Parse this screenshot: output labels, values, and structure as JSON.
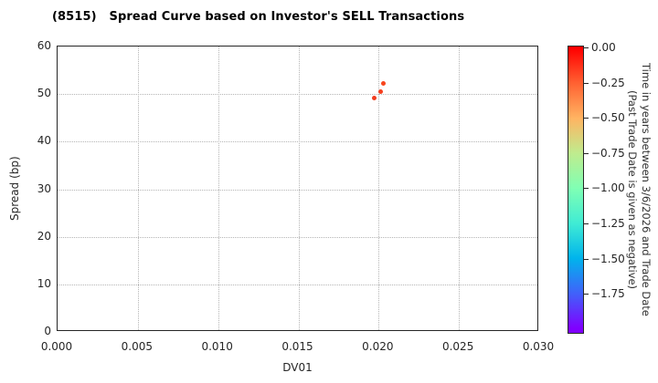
{
  "chart_data": {
    "type": "scatter",
    "title": "(8515)   Spread Curve based on Investor's SELL Transactions",
    "xlabel": "DV01",
    "ylabel": "Spread (bp)",
    "xlim": [
      0.0,
      0.03
    ],
    "ylim": [
      0,
      60
    ],
    "grid": true,
    "xticks": {
      "values": [
        0.0,
        0.005,
        0.01,
        0.015,
        0.02,
        0.025,
        0.03
      ],
      "labels": [
        "0.000",
        "0.005",
        "0.010",
        "0.015",
        "0.020",
        "0.025",
        "0.030"
      ]
    },
    "yticks": {
      "values": [
        0,
        10,
        20,
        30,
        40,
        50,
        60
      ],
      "labels": [
        "0",
        "10",
        "20",
        "30",
        "40",
        "50",
        "60"
      ]
    },
    "points": [
      {
        "dv01": 0.0203,
        "spread_bp": 52.3,
        "time_years": -0.1,
        "color": "#f8451d"
      },
      {
        "dv01": 0.0201,
        "spread_bp": 50.5,
        "time_years": -0.1,
        "color": "#f53f1e"
      },
      {
        "dv01": 0.0197,
        "spread_bp": 49.2,
        "time_years": -0.1,
        "color": "#f23c1f"
      }
    ],
    "colorbar": {
      "label_line1": "Time in years between 3/6/2026 and Trade Date",
      "label_line2": "(Past Trade Date is given as negative)",
      "range_top": 0.013,
      "range_bottom": -2.033,
      "ticks": {
        "values": [
          0,
          -0.25,
          -0.5,
          -0.75,
          -1.0,
          -1.25,
          -1.5,
          -1.75
        ],
        "labels": [
          "0.00",
          "−0.25",
          "−0.50",
          "−0.75",
          "−1.00",
          "−1.25",
          "−1.50",
          "−1.75"
        ]
      },
      "gradient": [
        {
          "value": 0.0,
          "color": "#ff0000"
        },
        {
          "value": -0.25,
          "color": "#ff6232"
        },
        {
          "value": -0.5,
          "color": "#ffb462"
        },
        {
          "value": -0.75,
          "color": "#bfec8e"
        },
        {
          "value": -1.0,
          "color": "#80ffb4"
        },
        {
          "value": -1.25,
          "color": "#40ecd4"
        },
        {
          "value": -1.5,
          "color": "#00b4ec"
        },
        {
          "value": -1.75,
          "color": "#4062fa"
        },
        {
          "value": -2.0,
          "color": "#8000ff"
        }
      ]
    }
  }
}
